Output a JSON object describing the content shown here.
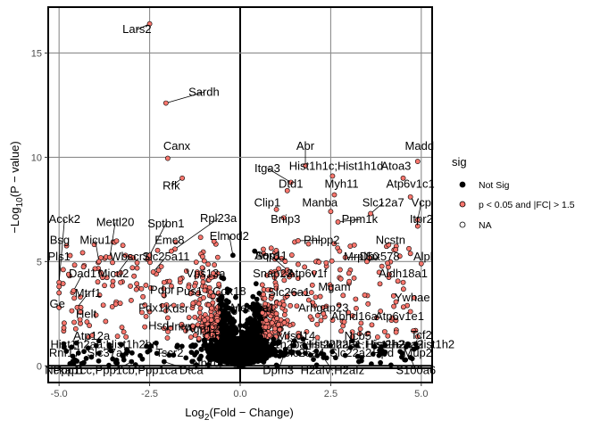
{
  "chart_data": {
    "type": "scatter",
    "title": "",
    "xlabel": {
      "prefix": "Log",
      "sub": "2",
      "suffix": "(Fold − Change)"
    },
    "ylabel": {
      "prefix": "−Log",
      "sub": "10",
      "suffix": "(P − value)"
    },
    "xlim": [
      -5.3,
      5.3
    ],
    "ylim": [
      -0.8,
      17.2
    ],
    "xticks": [
      -5.0,
      -2.5,
      0.0,
      2.5,
      5.0
    ],
    "xtick_labels": [
      "-5.0",
      "-2.5",
      "0.0",
      "2.5",
      "5.0"
    ],
    "yticks": [
      0,
      5,
      10,
      15
    ],
    "ytick_labels": [
      "0",
      "5",
      "10",
      "15"
    ],
    "grid": true,
    "legend": {
      "position": "right",
      "title": "sig",
      "entries": [
        {
          "label": "Not Sig",
          "color": "#000000"
        },
        {
          "label": "p < 0.05 and |FC| > 1.5",
          "color": "#f8766d"
        },
        {
          "label": "NA",
          "color": "#ffffff"
        }
      ]
    },
    "colors": {
      "sig": "#f8766d",
      "notsig": "#000000",
      "stroke": "#000000"
    },
    "labeled_points": [
      {
        "label": "Lars2",
        "x": -2.5,
        "y": 16.4,
        "lx": -2.85,
        "ly": 15.95
      },
      {
        "label": "Sardh",
        "x": -2.05,
        "y": 12.6,
        "lx": -1.0,
        "ly": 12.95
      },
      {
        "label": "Canx",
        "x": -2.0,
        "y": 9.95,
        "lx": -1.75,
        "ly": 10.35
      },
      {
        "label": "Rfk",
        "x": -1.6,
        "y": 9.0,
        "lx": -1.9,
        "ly": 8.45
      },
      {
        "label": "Abr",
        "x": 1.8,
        "y": 9.6,
        "lx": 1.8,
        "ly": 10.35
      },
      {
        "label": "Madd",
        "x": 4.9,
        "y": 9.8,
        "lx": 4.95,
        "ly": 10.35
      },
      {
        "label": "Itga3",
        "x": 1.4,
        "y": 8.8,
        "lx": 0.75,
        "ly": 9.3
      },
      {
        "label": "Hist1h1c;Hist1h1d",
        "x": 2.55,
        "y": 9.1,
        "lx": 2.65,
        "ly": 9.4
      },
      {
        "label": "Atoa3",
        "x": 4.5,
        "y": 9.0,
        "lx": 4.3,
        "ly": 9.4
      },
      {
        "label": "Dtd1",
        "x": 1.3,
        "y": 8.4,
        "lx": 1.4,
        "ly": 8.55
      },
      {
        "label": "Myh11",
        "x": 2.6,
        "y": 8.2,
        "lx": 2.8,
        "ly": 8.55
      },
      {
        "label": "Atp6v1c1",
        "x": 4.7,
        "y": 8.1,
        "lx": 4.7,
        "ly": 8.55
      },
      {
        "label": "Clip1",
        "x": 1.0,
        "y": 7.5,
        "lx": 0.75,
        "ly": 7.65
      },
      {
        "label": "Manba",
        "x": 2.5,
        "y": 7.4,
        "lx": 2.2,
        "ly": 7.65
      },
      {
        "label": "Slc12a7",
        "x": 3.6,
        "y": 7.3,
        "lx": 3.95,
        "ly": 7.65
      },
      {
        "label": "Vcp",
        "x": 4.9,
        "y": 7.0,
        "lx": 5.0,
        "ly": 7.65
      },
      {
        "label": "Bnip3",
        "x": 1.2,
        "y": 7.1,
        "lx": 1.25,
        "ly": 6.85
      },
      {
        "label": "Ppm1k",
        "x": 2.7,
        "y": 6.9,
        "lx": 3.3,
        "ly": 6.85
      },
      {
        "label": "Itpr2",
        "x": 4.9,
        "y": 6.7,
        "lx": 5.0,
        "ly": 6.85
      },
      {
        "label": "Phlpp2",
        "x": 1.6,
        "y": 6.0,
        "lx": 2.25,
        "ly": 5.85
      },
      {
        "label": "Ncstn",
        "x": 4.1,
        "y": 5.8,
        "lx": 4.15,
        "ly": 5.85
      },
      {
        "label": "Mrpl50",
        "x": 2.9,
        "y": 5.2,
        "lx": 3.35,
        "ly": 5.05
      },
      {
        "label": "Dhx578",
        "x": 3.5,
        "y": 5.0,
        "lx": 3.85,
        "ly": 5.05
      },
      {
        "label": "Alpl",
        "x": 5.0,
        "y": 4.9,
        "lx": 5.05,
        "ly": 5.05
      },
      {
        "label": "Aldh18a1",
        "x": 4.5,
        "y": 4.0,
        "lx": 4.5,
        "ly": 4.25
      },
      {
        "label": "Mgam",
        "x": 2.5,
        "y": 3.7,
        "lx": 2.6,
        "ly": 3.6
      },
      {
        "label": "Aqp11",
        "x": 1.3,
        "y": 4.6,
        "lx": 0.85,
        "ly": 5.1
      },
      {
        "label": "Sord",
        "x": 0.4,
        "y": 5.5,
        "lx": 0.75,
        "ly": 5.1
      },
      {
        "label": "Atp6v1f",
        "x": 1.6,
        "y": 4.2,
        "lx": 1.85,
        "ly": 4.25
      },
      {
        "label": "Slc26a1",
        "x": 1.8,
        "y": 3.5,
        "lx": 1.35,
        "ly": 3.35
      },
      {
        "label": "Snap23",
        "x": 1.2,
        "y": 4.4,
        "lx": 0.9,
        "ly": 4.25
      },
      {
        "label": "Arhgap23",
        "x": 2.3,
        "y": 2.5,
        "lx": 2.3,
        "ly": 2.6
      },
      {
        "label": "Abhd16a",
        "x": 3.1,
        "y": 2.4,
        "lx": 3.15,
        "ly": 2.2
      },
      {
        "label": "Atp6v1e1",
        "x": 4.2,
        "y": 2.3,
        "lx": 4.4,
        "ly": 2.2
      },
      {
        "label": "Ywhae",
        "x": 4.7,
        "y": 2.6,
        "lx": 4.75,
        "ly": 3.1
      },
      {
        "label": "Tcf2",
        "x": 4.9,
        "y": 1.4,
        "lx": 5.0,
        "ly": 1.3
      },
      {
        "label": "Hist2h2aa1;Hist2h2aa2",
        "x": 3.1,
        "y": 1.2,
        "lx": 3.4,
        "ly": 0.85
      },
      {
        "label": "Hist1h2ba;Hist2h2bc",
        "x": 1.5,
        "y": 1.2,
        "lx": 1.85,
        "ly": 0.85
      },
      {
        "label": "Mfsd14",
        "x": 1.3,
        "y": 1.4,
        "lx": 1.55,
        "ly": 1.25
      },
      {
        "label": "Ncb5",
        "x": 3.1,
        "y": 1.4,
        "lx": 3.25,
        "ly": 1.25
      },
      {
        "label": "Hist1h2a;Hist1h2",
        "x": 4.0,
        "y": 1.0,
        "lx": 4.7,
        "ly": 0.85
      },
      {
        "label": "Slc25a4",
        "x": 1.8,
        "y": 0.6,
        "lx": 1.75,
        "ly": 0.45
      },
      {
        "label": "Slc22a2",
        "x": 2.9,
        "y": 0.5,
        "lx": 3.05,
        "ly": 0.45
      },
      {
        "label": "Hpd",
        "x": 3.9,
        "y": 0.6,
        "lx": 3.95,
        "ly": 0.45
      },
      {
        "label": "Mup2",
        "x": 4.8,
        "y": 0.8,
        "lx": 4.9,
        "ly": 0.45
      },
      {
        "label": "Dpm3",
        "x": 1.2,
        "y": 0.5,
        "lx": 1.05,
        "ly": -0.4
      },
      {
        "label": "H2afv;H2afz",
        "x": 2.3,
        "y": 0.4,
        "lx": 2.55,
        "ly": -0.4
      },
      {
        "label": "S100a6",
        "x": 4.7,
        "y": 0.4,
        "lx": 4.85,
        "ly": -0.4
      },
      {
        "label": "Aqp12",
        "x": -0.9,
        "y": 2.0,
        "lx": -1.05,
        "ly": 1.6
      },
      {
        "label": "Cib3a",
        "x": -0.5,
        "y": 1.8,
        "lx": -0.6,
        "ly": 1.2
      },
      {
        "label": "Nhlrc",
        "x": -0.5,
        "y": 0.4,
        "lx": -0.95,
        "ly": -0.05
      },
      {
        "label": "Acck2",
        "x": -5.0,
        "y": 4.0,
        "lx": -4.85,
        "ly": 6.85
      },
      {
        "label": "Mettl20",
        "x": -3.6,
        "y": 5.2,
        "lx": -3.45,
        "ly": 6.7
      },
      {
        "label": "Sptbn1",
        "x": -2.5,
        "y": 5.3,
        "lx": -2.05,
        "ly": 6.65
      },
      {
        "label": "Rpl23a",
        "x": -1.8,
        "y": 5.6,
        "lx": -0.6,
        "ly": 6.9
      },
      {
        "label": "Bsg",
        "x": -5.0,
        "y": 3.5,
        "lx": -4.98,
        "ly": 5.85
      },
      {
        "label": "Micu1",
        "x": -3.9,
        "y": 5.0,
        "lx": -4.0,
        "ly": 5.85
      },
      {
        "label": "Emc8",
        "x": -1.9,
        "y": 5.5,
        "lx": -1.95,
        "ly": 5.85
      },
      {
        "label": "Elmod2",
        "x": -0.2,
        "y": 5.3,
        "lx": -0.3,
        "ly": 6.05
      },
      {
        "label": "Pls1",
        "x": -5.0,
        "y": 3.8,
        "lx": -5.0,
        "ly": 5.05
      },
      {
        "label": "Wbscr1",
        "x": -3.4,
        "y": 4.4,
        "lx": -3.05,
        "ly": 5.05
      },
      {
        "label": "Slc25a11",
        "x": -2.4,
        "y": 4.5,
        "lx": -2.05,
        "ly": 5.05
      },
      {
        "label": "Dad1",
        "x": -4.6,
        "y": 3.6,
        "lx": -4.35,
        "ly": 4.25
      },
      {
        "label": "Micu2",
        "x": -3.3,
        "y": 4.0,
        "lx": -3.5,
        "ly": 4.25
      },
      {
        "label": "Pdpr",
        "x": -2.1,
        "y": 4.0,
        "lx": -2.15,
        "ly": 3.45
      },
      {
        "label": "Vps13a",
        "x": -1.2,
        "y": 4.3,
        "lx": -0.95,
        "ly": 4.25
      },
      {
        "label": "Mtrf1",
        "x": -4.5,
        "y": 2.8,
        "lx": -4.2,
        "ly": 3.3
      },
      {
        "label": "Pus1",
        "x": -1.3,
        "y": 3.0,
        "lx": -1.4,
        "ly": 3.4
      },
      {
        "label": "Cox18",
        "x": -0.6,
        "y": 3.5,
        "lx": -0.3,
        "ly": 3.4
      },
      {
        "label": "Ge",
        "x": -5.0,
        "y": 2.8,
        "lx": -5.05,
        "ly": 2.8
      },
      {
        "label": "Helt",
        "x": -4.4,
        "y": 2.8,
        "lx": -4.25,
        "ly": 2.3
      },
      {
        "label": "Fdx1",
        "x": -2.5,
        "y": 2.6,
        "lx": -2.45,
        "ly": 2.6
      },
      {
        "label": "Kdsr",
        "x": -2.0,
        "y": 2.3,
        "lx": -1.75,
        "ly": 2.55
      },
      {
        "label": "Nsg",
        "x": -0.5,
        "y": 2.4,
        "lx": -0.35,
        "ly": 2.55
      },
      {
        "label": "Hnrn",
        "x": -1.3,
        "y": 1.9,
        "lx": -1.7,
        "ly": 1.7
      },
      {
        "label": "Hsd",
        "x": -2.1,
        "y": 1.8,
        "lx": -2.25,
        "ly": 1.75
      },
      {
        "label": "Atp12a",
        "x": -3.9,
        "y": 1.2,
        "lx": -4.1,
        "ly": 1.25
      },
      {
        "label": "Hist1h2aa;Hist1h2bn",
        "x": -3.6,
        "y": 0.9,
        "lx": -3.75,
        "ly": 0.85
      },
      {
        "label": "Rnf17",
        "x": -4.8,
        "y": 0.7,
        "lx": -4.85,
        "ly": 0.45
      },
      {
        "label": "Slc37a4",
        "x": -3.9,
        "y": 0.6,
        "lx": -3.65,
        "ly": 0.45
      },
      {
        "label": "Tscr2",
        "x": -2.3,
        "y": 0.6,
        "lx": -1.95,
        "ly": 0.45
      },
      {
        "label": "Nckap1",
        "x": -4.7,
        "y": 0.1,
        "lx": -4.85,
        "ly": -0.4
      },
      {
        "label": "Ppp1cc;Ppp1cb;Ppp1ca",
        "x": -3.0,
        "y": 0.2,
        "lx": -3.45,
        "ly": -0.4
      },
      {
        "label": "Dtca",
        "x": -2.1,
        "y": 0.2,
        "lx": -1.35,
        "ly": -0.4
      },
      {
        "label": "Mettl7a1",
        "x": 1.0,
        "y": 2.5,
        "lx": 0.35,
        "ly": 2.6
      }
    ]
  }
}
